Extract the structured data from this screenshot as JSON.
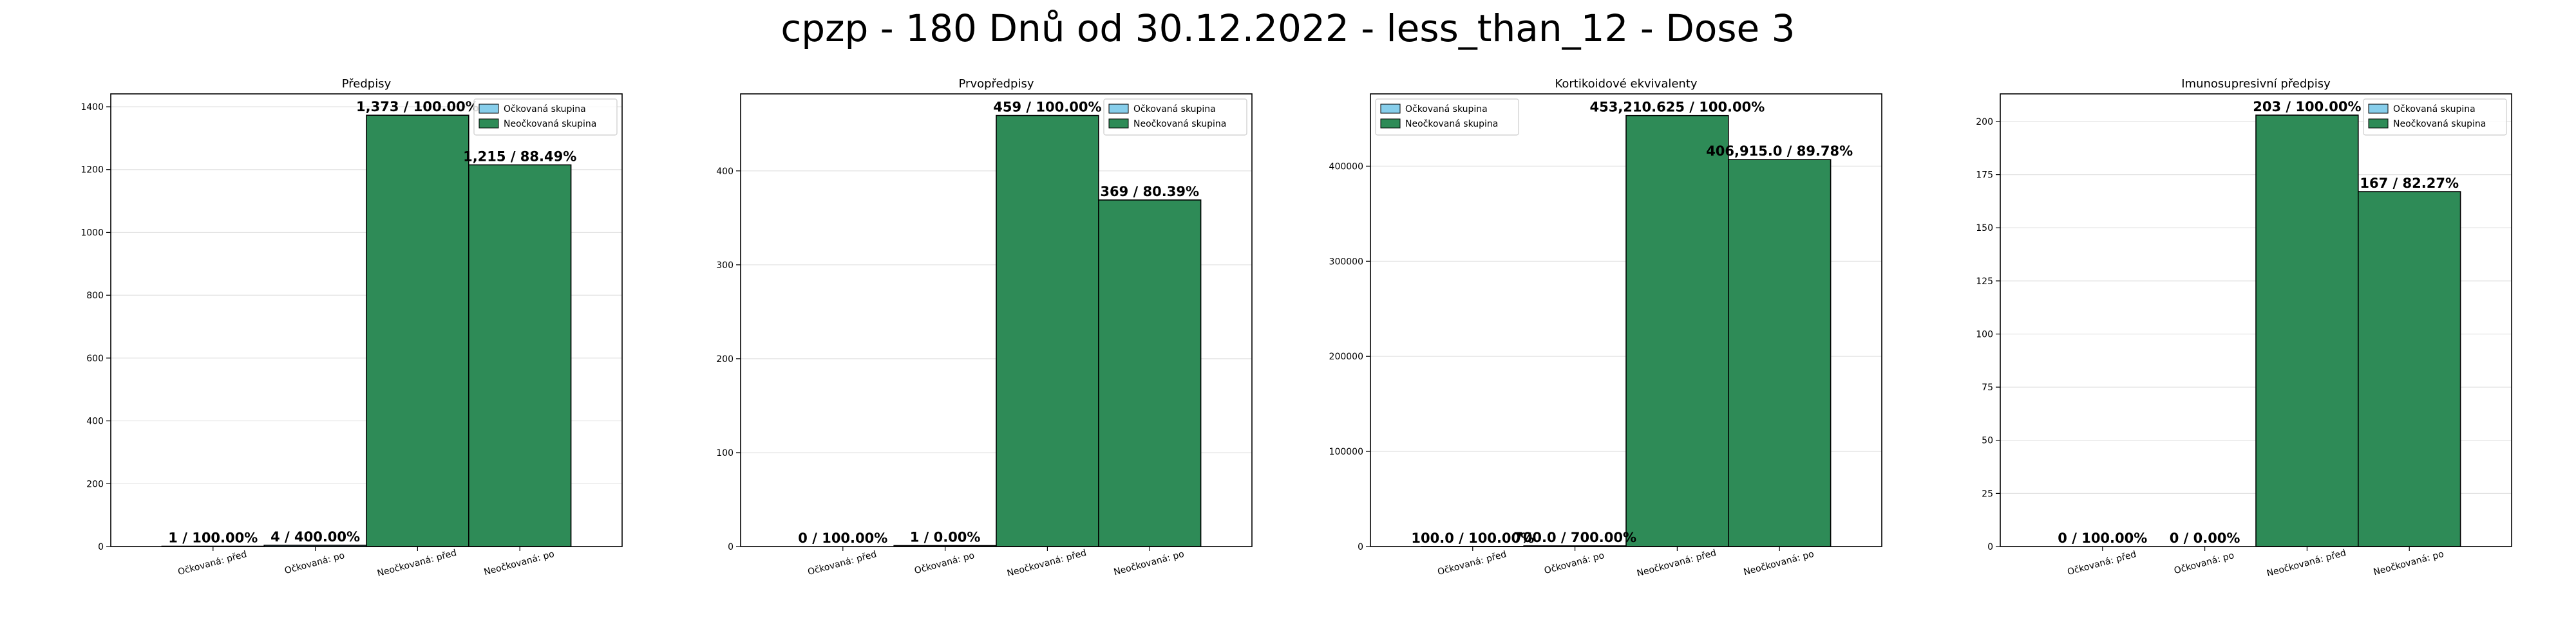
{
  "figure": {
    "suptitle": "cpzp - 180 Dnů od 30.12.2022 - less_than_12 - Dose 3"
  },
  "colors": {
    "vaccinated": "#87ceeb",
    "unvaccinated": "#2e8b57",
    "edge": "#000000"
  },
  "chart_data": [
    {
      "type": "bar",
      "title": "Předpisy",
      "categories": [
        "Očkovaná: před",
        "Očkovaná: po",
        "Neočkovaná: před",
        "Neočkovaná: po"
      ],
      "groups": [
        "vaccinated",
        "vaccinated",
        "unvaccinated",
        "unvaccinated"
      ],
      "values": [
        1,
        4,
        1373,
        1215
      ],
      "data_labels": [
        "1 / 100.00%",
        "4 / 400.00%",
        "1,373 / 100.00%",
        "1,215 / 88.49%"
      ],
      "ylim": [
        0,
        1441
      ],
      "yticks": [
        0,
        200,
        400,
        600,
        800,
        1000,
        1200,
        1400
      ],
      "ytick_labels": [
        "0",
        "200",
        "400",
        "600",
        "800",
        "1000",
        "1200",
        "1400"
      ],
      "legend": {
        "entries": [
          "Očkovaná skupina",
          "Neočkovaná skupina"
        ],
        "placement": "upper right"
      },
      "grid": true
    },
    {
      "type": "bar",
      "title": "Prvopředpisy",
      "categories": [
        "Očkovaná: před",
        "Očkovaná: po",
        "Neočkovaná: před",
        "Neočkovaná: po"
      ],
      "groups": [
        "vaccinated",
        "vaccinated",
        "unvaccinated",
        "unvaccinated"
      ],
      "values": [
        0,
        1,
        459,
        369
      ],
      "data_labels": [
        "0 / 100.00%",
        "1 / 0.00%",
        "459 / 100.00%",
        "369 / 80.39%"
      ],
      "ylim": [
        0,
        482
      ],
      "yticks": [
        0,
        100,
        200,
        300,
        400
      ],
      "ytick_labels": [
        "0",
        "100",
        "200",
        "300",
        "400"
      ],
      "legend": {
        "entries": [
          "Očkovaná skupina",
          "Neočkovaná skupina"
        ],
        "placement": "upper right"
      },
      "grid": true
    },
    {
      "type": "bar",
      "title": "Kortikoidové ekvivalenty",
      "categories": [
        "Očkovaná: před",
        "Očkovaná: po",
        "Neočkovaná: před",
        "Neočkovaná: po"
      ],
      "groups": [
        "vaccinated",
        "vaccinated",
        "unvaccinated",
        "unvaccinated"
      ],
      "values": [
        100.0,
        700.0,
        453210.625,
        406915.0
      ],
      "data_labels": [
        "100.0 / 100.00%",
        "700.0 / 700.00%",
        "453,210.625 / 100.00%",
        "406,915.0 / 89.78%"
      ],
      "ylim": [
        0,
        476000
      ],
      "yticks": [
        0,
        100000,
        200000,
        300000,
        400000
      ],
      "ytick_labels": [
        "0",
        "100000",
        "200000",
        "300000",
        "400000"
      ],
      "legend": {
        "entries": [
          "Očkovaná skupina",
          "Neočkovaná skupina"
        ],
        "placement": "upper left"
      },
      "grid": true
    },
    {
      "type": "bar",
      "title": "Imunosupresivní předpisy",
      "categories": [
        "Očkovaná: před",
        "Očkovaná: po",
        "Neočkovaná: před",
        "Neočkovaná: po"
      ],
      "groups": [
        "vaccinated",
        "vaccinated",
        "unvaccinated",
        "unvaccinated"
      ],
      "values": [
        0,
        0,
        203,
        167
      ],
      "data_labels": [
        "0 / 100.00%",
        "0 / 0.00%",
        "203 / 100.00%",
        "167 / 82.27%"
      ],
      "ylim": [
        0,
        213
      ],
      "yticks": [
        0,
        25,
        50,
        75,
        100,
        125,
        150,
        175,
        200
      ],
      "ytick_labels": [
        "0",
        "25",
        "50",
        "75",
        "100",
        "125",
        "150",
        "175",
        "200"
      ],
      "legend": {
        "entries": [
          "Očkovaná skupina",
          "Neočkovaná skupina"
        ],
        "placement": "upper right"
      },
      "grid": true
    }
  ]
}
